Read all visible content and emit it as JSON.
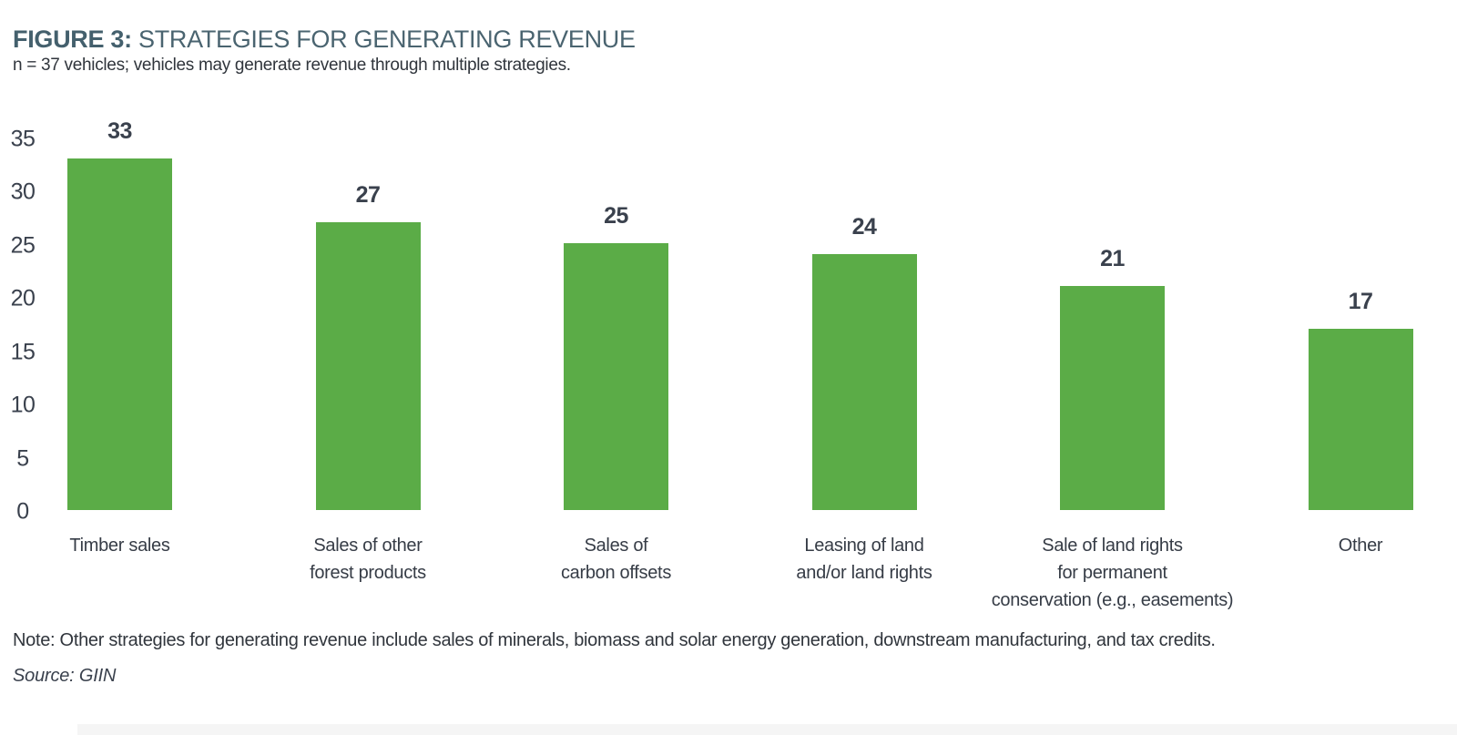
{
  "figure": {
    "label": "FIGURE 3:",
    "title": " STRATEGIES FOR GENERATING REVENUE",
    "subtitle": "n = 37 vehicles; vehicles may generate revenue through multiple strategies.",
    "note": "Note: Other strategies for generating revenue include sales of minerals, biomass and solar energy generation, downstream manufacturing, and tax credits.",
    "source": "Source: GIIN"
  },
  "chart_data": {
    "type": "bar",
    "title": "FIGURE 3: STRATEGIES FOR GENERATING REVENUE",
    "subtitle": "n = 37 vehicles; vehicles may generate revenue through multiple strategies.",
    "categories": [
      "Timber sales",
      "Sales of other\nforest products",
      "Sales of\ncarbon offsets",
      "Leasing of land\nand/or land rights",
      "Sale of land rights\nfor permanent\nconservation (e.g., easements)",
      "Other"
    ],
    "values": [
      33,
      27,
      25,
      24,
      21,
      17
    ],
    "value_labels_shown": true,
    "xlabel": "",
    "ylabel": "",
    "ylim": [
      0,
      35
    ],
    "yticks": [
      0,
      5,
      10,
      15,
      20,
      25,
      30,
      35
    ],
    "grid": false,
    "legend": "none",
    "note": "Note: Other strategies for generating revenue include sales of minerals, biomass and solar energy generation, downstream manufacturing, and tax credits.",
    "source": "Source: GIIN"
  },
  "colors": {
    "bar_green": "#5bac47",
    "title_slate": "#4a6470",
    "text_dark": "#3a414d",
    "background": "#ffffff"
  }
}
